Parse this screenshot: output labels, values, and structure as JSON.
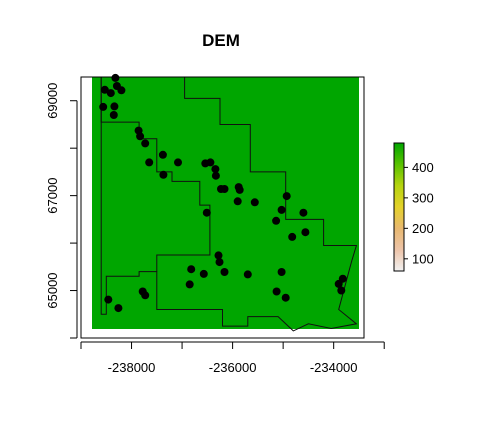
{
  "chart_data": {
    "type": "raster-map",
    "title": "DEM",
    "xlim": [
      -239000,
      -233400
    ],
    "ylim": [
      64000,
      69500
    ],
    "x_ticks": [
      -238000,
      -236000,
      -234000
    ],
    "x_tick_labels": [
      "-238000",
      "-236000",
      "-234000"
    ],
    "x_minor_ticks": [
      -239000,
      -237000,
      -235000,
      -233000
    ],
    "y_ticks": [
      65000,
      67000,
      69000
    ],
    "y_tick_labels": [
      "65000",
      "67000",
      "69000"
    ],
    "y_minor_ticks": [
      64000,
      66000,
      68000
    ],
    "legend": {
      "placement": "right",
      "range": [
        60,
        480
      ],
      "ticks": [
        100,
        200,
        300,
        400
      ],
      "tick_labels": [
        "100",
        "200",
        "300",
        "400"
      ],
      "colors": [
        "#f2f2f2",
        "#edc4a9",
        "#e8b870",
        "#e4d22a",
        "#b6d40f",
        "#59c200",
        "#00a600"
      ]
    },
    "boundary": [
      [
        -238600,
        69500
      ],
      [
        -236950,
        69500
      ],
      [
        -236950,
        69050
      ],
      [
        -236250,
        69050
      ],
      [
        -236250,
        68500
      ],
      [
        -235650,
        68500
      ],
      [
        -235650,
        67500
      ],
      [
        -234950,
        67500
      ],
      [
        -234950,
        66500
      ],
      [
        -234200,
        66500
      ],
      [
        -234200,
        65950
      ],
      [
        -233550,
        65950
      ],
      [
        -233650,
        65600
      ],
      [
        -233900,
        64600
      ],
      [
        -233550,
        64300
      ],
      [
        -234050,
        64200
      ],
      [
        -234500,
        64300
      ],
      [
        -234800,
        64150
      ],
      [
        -235100,
        64450
      ],
      [
        -235700,
        64450
      ],
      [
        -235700,
        64250
      ],
      [
        -236200,
        64250
      ],
      [
        -236200,
        64600
      ],
      [
        -237500,
        64600
      ],
      [
        -237500,
        65400
      ],
      [
        -237850,
        65400
      ],
      [
        -237850,
        65300
      ],
      [
        -238500,
        65300
      ],
      [
        -238500,
        64500
      ],
      [
        -238600,
        64500
      ]
    ],
    "inner_boundary": [
      [
        -238600,
        69500
      ],
      [
        -238600,
        68550
      ],
      [
        -237850,
        68550
      ],
      [
        -237850,
        68200
      ],
      [
        -237500,
        68200
      ],
      [
        -237500,
        67500
      ],
      [
        -237200,
        67500
      ],
      [
        -237200,
        67300
      ],
      [
        -236650,
        67300
      ],
      [
        -236650,
        66800
      ],
      [
        -236450,
        66800
      ],
      [
        -236450,
        65750
      ],
      [
        -237000,
        65750
      ],
      [
        -237000,
        65750
      ],
      [
        -237500,
        65750
      ],
      [
        -237500,
        65400
      ]
    ],
    "points": [
      [
        -238320,
        69480
      ],
      [
        -238530,
        69230
      ],
      [
        -238290,
        69310
      ],
      [
        -238410,
        69160
      ],
      [
        -238200,
        69220
      ],
      [
        -238340,
        68880
      ],
      [
        -238560,
        68870
      ],
      [
        -238350,
        68700
      ],
      [
        -237860,
        68370
      ],
      [
        -237830,
        68250
      ],
      [
        -237730,
        68100
      ],
      [
        -237650,
        67700
      ],
      [
        -237380,
        67860
      ],
      [
        -237080,
        67700
      ],
      [
        -237370,
        67440
      ],
      [
        -236540,
        67680
      ],
      [
        -236440,
        67700
      ],
      [
        -236340,
        67560
      ],
      [
        -236330,
        67420
      ],
      [
        -236230,
        67140
      ],
      [
        -236160,
        67140
      ],
      [
        -235880,
        67180
      ],
      [
        -235860,
        67120
      ],
      [
        -235900,
        66880
      ],
      [
        -235560,
        66860
      ],
      [
        -236510,
        66640
      ],
      [
        -234930,
        66990
      ],
      [
        -235030,
        66700
      ],
      [
        -234600,
        66640
      ],
      [
        -235140,
        66470
      ],
      [
        -234560,
        66230
      ],
      [
        -234820,
        66130
      ],
      [
        -236280,
        65740
      ],
      [
        -236260,
        65600
      ],
      [
        -236160,
        65390
      ],
      [
        -236570,
        65350
      ],
      [
        -236820,
        65450
      ],
      [
        -235700,
        65340
      ],
      [
        -235030,
        65390
      ],
      [
        -236850,
        65130
      ],
      [
        -235130,
        64980
      ],
      [
        -234950,
        64850
      ],
      [
        -233820,
        65250
      ],
      [
        -233900,
        65140
      ],
      [
        -233850,
        65000
      ],
      [
        -237780,
        64980
      ],
      [
        -237730,
        64900
      ],
      [
        -238460,
        64810
      ],
      [
        -238260,
        64630
      ]
    ]
  }
}
